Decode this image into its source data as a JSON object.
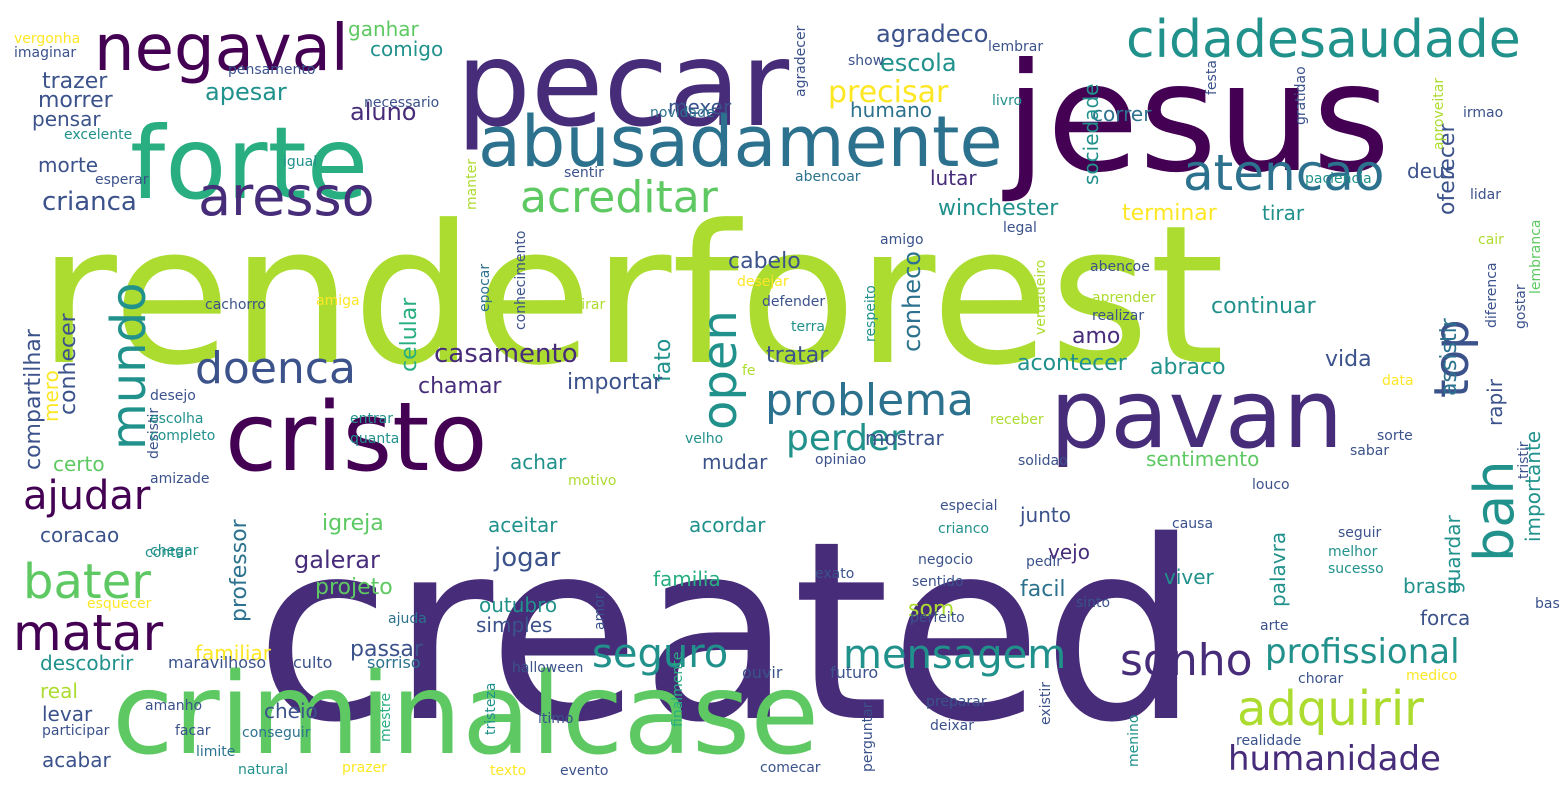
{
  "palette": {
    "dark_purple": "#440154",
    "purple": "#472c7a",
    "indigo": "#3b528b",
    "blue": "#2c728e",
    "teal": "#21918c",
    "sea_green": "#28ae80",
    "green": "#5ec962",
    "lime": "#addc30",
    "yellow": "#fde725"
  },
  "words": [
    {
      "text": "created",
      "color": "purple"
    },
    {
      "text": "renderforest",
      "color": "lime"
    },
    {
      "text": "criminalcase",
      "color": "green"
    },
    {
      "text": "jesus",
      "color": "dark_purple"
    },
    {
      "text": "pecar",
      "color": "purple"
    },
    {
      "text": "forte",
      "color": "sea_green"
    },
    {
      "text": "cristo",
      "color": "dark_purple"
    },
    {
      "text": "pavan",
      "color": "purple"
    },
    {
      "text": "abusadamente",
      "color": "blue"
    },
    {
      "text": "negaval",
      "color": "dark_purple"
    },
    {
      "text": "cidadesaudade",
      "color": "teal"
    },
    {
      "text": "atencao",
      "color": "blue"
    },
    {
      "text": "aresso",
      "color": "purple"
    },
    {
      "text": "acreditar",
      "color": "green"
    },
    {
      "text": "problema",
      "color": "blue"
    },
    {
      "text": "doenca",
      "color": "indigo"
    },
    {
      "text": "mundo",
      "color": "teal"
    },
    {
      "text": "open",
      "color": "teal"
    },
    {
      "text": "top",
      "color": "indigo"
    },
    {
      "text": "bah",
      "color": "teal"
    },
    {
      "text": "ajudar",
      "color": "dark_purple"
    },
    {
      "text": "bater",
      "color": "green"
    },
    {
      "text": "matar",
      "color": "dark_purple"
    },
    {
      "text": "seguro",
      "color": "teal"
    },
    {
      "text": "mensagem",
      "color": "teal"
    },
    {
      "text": "sonho",
      "color": "purple"
    },
    {
      "text": "adquirir",
      "color": "lime"
    },
    {
      "text": "humanidade",
      "color": "purple"
    },
    {
      "text": "profissional",
      "color": "teal"
    },
    {
      "text": "perder",
      "color": "teal"
    },
    {
      "text": "casamento",
      "color": "purple"
    },
    {
      "text": "crianca",
      "color": "indigo"
    },
    {
      "text": "agradeco",
      "color": "indigo"
    },
    {
      "text": "escola",
      "color": "teal"
    },
    {
      "text": "precisar",
      "color": "yellow"
    },
    {
      "text": "aluno",
      "color": "purple"
    },
    {
      "text": "apesar",
      "color": "teal"
    },
    {
      "text": "trazer",
      "color": "indigo"
    },
    {
      "text": "morrer",
      "color": "indigo"
    },
    {
      "text": "ganhar",
      "color": "green"
    },
    {
      "text": "comigo",
      "color": "teal"
    },
    {
      "text": "pensar",
      "color": "indigo"
    },
    {
      "text": "morte",
      "color": "indigo"
    },
    {
      "text": "humano",
      "color": "blue"
    },
    {
      "text": "correr",
      "color": "blue"
    },
    {
      "text": "mexer",
      "color": "indigo"
    },
    {
      "text": "lutar",
      "color": "purple"
    },
    {
      "text": "deus",
      "color": "indigo"
    },
    {
      "text": "oferecer",
      "color": "indigo"
    },
    {
      "text": "winchester",
      "color": "teal"
    },
    {
      "text": "terminar",
      "color": "yellow"
    },
    {
      "text": "tirar",
      "color": "teal"
    },
    {
      "text": "sociedade",
      "color": "teal"
    },
    {
      "text": "cabelo",
      "color": "indigo"
    },
    {
      "text": "celular",
      "color": "sea_green"
    },
    {
      "text": "conheco",
      "color": "blue"
    },
    {
      "text": "continuar",
      "color": "teal"
    },
    {
      "text": "assistir",
      "color": "blue"
    },
    {
      "text": "fato",
      "color": "teal"
    },
    {
      "text": "compartilhar",
      "color": "indigo"
    },
    {
      "text": "conhecer",
      "color": "indigo"
    },
    {
      "text": "acontecer",
      "color": "teal"
    },
    {
      "text": "abraco",
      "color": "teal"
    },
    {
      "text": "vida",
      "color": "indigo"
    },
    {
      "text": "chamar",
      "color": "purple"
    },
    {
      "text": "importar",
      "color": "indigo"
    },
    {
      "text": "tratar",
      "color": "indigo"
    },
    {
      "text": "amo",
      "color": "purple"
    },
    {
      "text": "sentimento",
      "color": "green"
    },
    {
      "text": "rapir",
      "color": "indigo"
    },
    {
      "text": "importante",
      "color": "teal"
    },
    {
      "text": "mero",
      "color": "yellow"
    },
    {
      "text": "certo",
      "color": "green"
    },
    {
      "text": "achar",
      "color": "teal"
    },
    {
      "text": "mudar",
      "color": "indigo"
    },
    {
      "text": "mostrar",
      "color": "indigo"
    },
    {
      "text": "coracao",
      "color": "indigo"
    },
    {
      "text": "igreja",
      "color": "green"
    },
    {
      "text": "galerar",
      "color": "purple"
    },
    {
      "text": "projeto",
      "color": "green"
    },
    {
      "text": "professor",
      "color": "blue"
    },
    {
      "text": "jogar",
      "color": "indigo"
    },
    {
      "text": "aceitar",
      "color": "teal"
    },
    {
      "text": "acordar",
      "color": "teal"
    },
    {
      "text": "junto",
      "color": "indigo"
    },
    {
      "text": "vejo",
      "color": "purple"
    },
    {
      "text": "facil",
      "color": "blue"
    },
    {
      "text": "viver",
      "color": "teal"
    },
    {
      "text": "palavra",
      "color": "teal"
    },
    {
      "text": "guardar",
      "color": "teal"
    },
    {
      "text": "brasil",
      "color": "teal"
    },
    {
      "text": "forca",
      "color": "indigo"
    },
    {
      "text": "familia",
      "color": "sea_green"
    },
    {
      "text": "som",
      "color": "lime"
    },
    {
      "text": "outubro",
      "color": "teal"
    },
    {
      "text": "simples",
      "color": "indigo"
    },
    {
      "text": "passar",
      "color": "indigo"
    },
    {
      "text": "familiar",
      "color": "yellow"
    },
    {
      "text": "descobrir",
      "color": "teal"
    },
    {
      "text": "real",
      "color": "lime"
    },
    {
      "text": "levar",
      "color": "indigo"
    },
    {
      "text": "cheio",
      "color": "indigo"
    },
    {
      "text": "acabar",
      "color": "indigo"
    },
    {
      "text": "maravilhoso",
      "color": "indigo"
    },
    {
      "text": "sorriso",
      "color": "blue"
    },
    {
      "text": "culto",
      "color": "indigo"
    },
    {
      "text": "halloween",
      "color": "indigo"
    },
    {
      "text": "ouvir",
      "color": "indigo"
    },
    {
      "text": "futuro",
      "color": "indigo"
    },
    {
      "text": "chorar",
      "color": "indigo"
    },
    {
      "text": "medico",
      "color": "yellow"
    },
    {
      "text": "amanho",
      "color": "indigo"
    },
    {
      "text": "participar",
      "color": "indigo"
    },
    {
      "text": "facar",
      "color": "indigo"
    },
    {
      "text": "conseguir",
      "color": "blue"
    },
    {
      "text": "limite",
      "color": "blue"
    },
    {
      "text": "natural",
      "color": "teal"
    },
    {
      "text": "prazer",
      "color": "yellow"
    },
    {
      "text": "texto",
      "color": "yellow"
    },
    {
      "text": "evento",
      "color": "indigo"
    },
    {
      "text": "comecar",
      "color": "indigo"
    },
    {
      "text": "perguntar",
      "color": "indigo"
    },
    {
      "text": "preparar",
      "color": "indigo"
    },
    {
      "text": "deixar",
      "color": "indigo"
    },
    {
      "text": "realidade",
      "color": "indigo"
    },
    {
      "text": "existir",
      "color": "indigo"
    },
    {
      "text": "menino",
      "color": "teal"
    },
    {
      "text": "mestre",
      "color": "sea_green"
    },
    {
      "text": "tristeza",
      "color": "teal"
    },
    {
      "text": "finalmente",
      "color": "sea_green"
    },
    {
      "text": "ltimo",
      "color": "indigo"
    },
    {
      "text": "vergonha",
      "color": "yellow"
    },
    {
      "text": "imaginar",
      "color": "indigo"
    },
    {
      "text": "pensamento",
      "color": "indigo"
    },
    {
      "text": "necessario",
      "color": "indigo"
    },
    {
      "text": "lembrar",
      "color": "indigo"
    },
    {
      "text": "show",
      "color": "indigo"
    },
    {
      "text": "agradecer",
      "color": "indigo"
    },
    {
      "text": "novidade",
      "color": "blue"
    },
    {
      "text": "livro",
      "color": "teal"
    },
    {
      "text": "festa",
      "color": "indigo"
    },
    {
      "text": "gratidao",
      "color": "indigo"
    },
    {
      "text": "aproveitar",
      "color": "lime"
    },
    {
      "text": "irmao",
      "color": "indigo"
    },
    {
      "text": "excelente",
      "color": "teal"
    },
    {
      "text": "igual",
      "color": "teal"
    },
    {
      "text": "esperar",
      "color": "indigo"
    },
    {
      "text": "sentir",
      "color": "indigo"
    },
    {
      "text": "abencoar",
      "color": "blue"
    },
    {
      "text": "manter",
      "color": "lime"
    },
    {
      "text": "paciencia",
      "color": "teal"
    },
    {
      "text": "lidar",
      "color": "indigo"
    },
    {
      "text": "lembranca",
      "color": "green"
    },
    {
      "text": "cair",
      "color": "lime"
    },
    {
      "text": "amigo",
      "color": "indigo"
    },
    {
      "text": "conhecimento",
      "color": "indigo"
    },
    {
      "text": "legal",
      "color": "indigo"
    },
    {
      "text": "epocar",
      "color": "blue"
    },
    {
      "text": "desejar",
      "color": "yellow"
    },
    {
      "text": "abencoe",
      "color": "indigo"
    },
    {
      "text": "diferenca",
      "color": "indigo"
    },
    {
      "text": "gostar",
      "color": "indigo"
    },
    {
      "text": "cachorro",
      "color": "indigo"
    },
    {
      "text": "amiga",
      "color": "yellow"
    },
    {
      "text": "virar",
      "color": "lime"
    },
    {
      "text": "defender",
      "color": "indigo"
    },
    {
      "text": "terra",
      "color": "teal"
    },
    {
      "text": "respeito",
      "color": "teal"
    },
    {
      "text": "verdadeiro",
      "color": "lime"
    },
    {
      "text": "aprender",
      "color": "lime"
    },
    {
      "text": "realizar",
      "color": "indigo"
    },
    {
      "text": "data",
      "color": "yellow"
    },
    {
      "text": "desejo",
      "color": "indigo"
    },
    {
      "text": "desistir",
      "color": "indigo"
    },
    {
      "text": "escolha",
      "color": "teal"
    },
    {
      "text": "completo",
      "color": "teal"
    },
    {
      "text": "entrar",
      "color": "teal"
    },
    {
      "text": "quanta",
      "color": "teal"
    },
    {
      "text": "fe",
      "color": "lime"
    },
    {
      "text": "velho",
      "color": "teal"
    },
    {
      "text": "receber",
      "color": "lime"
    },
    {
      "text": "opiniao",
      "color": "indigo"
    },
    {
      "text": "solidao",
      "color": "indigo"
    },
    {
      "text": "sorte",
      "color": "indigo"
    },
    {
      "text": "sabar",
      "color": "indigo"
    },
    {
      "text": "tristir",
      "color": "indigo"
    },
    {
      "text": "amizade",
      "color": "indigo"
    },
    {
      "text": "motivo",
      "color": "lime"
    },
    {
      "text": "louco",
      "color": "indigo"
    },
    {
      "text": "especial",
      "color": "indigo"
    },
    {
      "text": "crianco",
      "color": "teal"
    },
    {
      "text": "causa",
      "color": "indigo"
    },
    {
      "text": "seguir",
      "color": "indigo"
    },
    {
      "text": "chegar",
      "color": "teal"
    },
    {
      "text": "contar",
      "color": "teal"
    },
    {
      "text": "negocio",
      "color": "indigo"
    },
    {
      "text": "pedir",
      "color": "indigo"
    },
    {
      "text": "melhor",
      "color": "teal"
    },
    {
      "text": "bastar",
      "color": "indigo"
    },
    {
      "text": "sucesso",
      "color": "teal"
    },
    {
      "text": "exato",
      "color": "indigo"
    },
    {
      "text": "sentido",
      "color": "indigo"
    },
    {
      "text": "esquecer",
      "color": "yellow"
    },
    {
      "text": "amor",
      "color": "indigo"
    },
    {
      "text": "sinto",
      "color": "indigo"
    },
    {
      "text": "ajuda",
      "color": "blue"
    },
    {
      "text": "perfeito",
      "color": "indigo"
    },
    {
      "text": "arte",
      "color": "indigo"
    }
  ]
}
